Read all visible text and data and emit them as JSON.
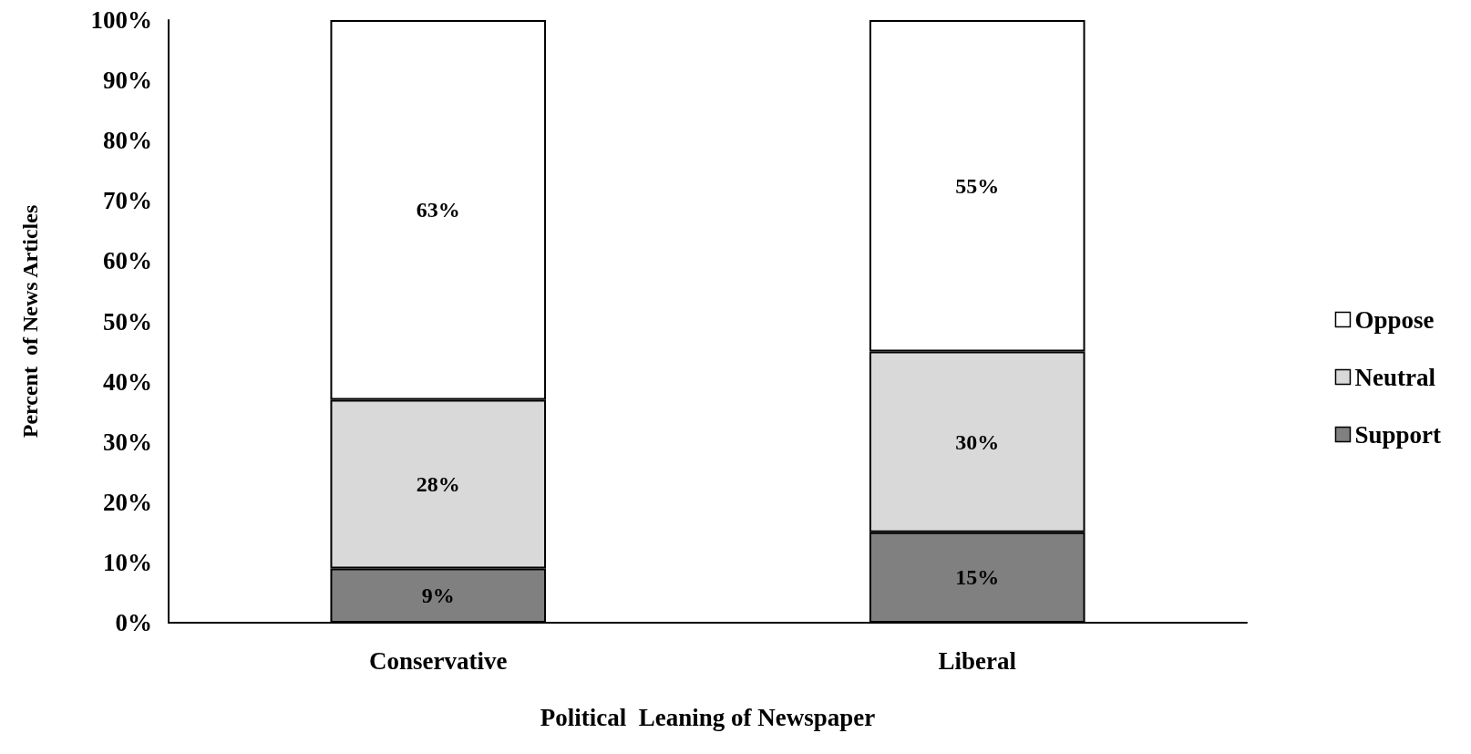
{
  "chart_data": {
    "type": "bar",
    "stacked": true,
    "xlabel": "Political  Leaning of Newspaper",
    "ylabel": "Percent  of News Articles",
    "categories": [
      "Conservative",
      "Liberal"
    ],
    "series": [
      {
        "name": "Support",
        "color": "#808080",
        "values": [
          9,
          15
        ],
        "value_labels": [
          "9%",
          "15%"
        ]
      },
      {
        "name": "Neutral",
        "color": "#d9d9d9",
        "values": [
          28,
          30
        ],
        "value_labels": [
          "28%",
          "30%"
        ]
      },
      {
        "name": "Oppose",
        "color": "#ffffff",
        "values": [
          63,
          55
        ],
        "value_labels": [
          "63%",
          "55%"
        ]
      }
    ],
    "ylim": [
      0,
      100
    ],
    "yticks": [
      {
        "value": 0,
        "label": "0%"
      },
      {
        "value": 10,
        "label": "10%"
      },
      {
        "value": 20,
        "label": "20%"
      },
      {
        "value": 30,
        "label": "30%"
      },
      {
        "value": 40,
        "label": "40%"
      },
      {
        "value": 50,
        "label": "50%"
      },
      {
        "value": 60,
        "label": "60%"
      },
      {
        "value": 70,
        "label": "70%"
      },
      {
        "value": 80,
        "label": "80%"
      },
      {
        "value": 90,
        "label": "90%"
      },
      {
        "value": 100,
        "label": "100%"
      }
    ],
    "grid": false,
    "legend": "right"
  }
}
